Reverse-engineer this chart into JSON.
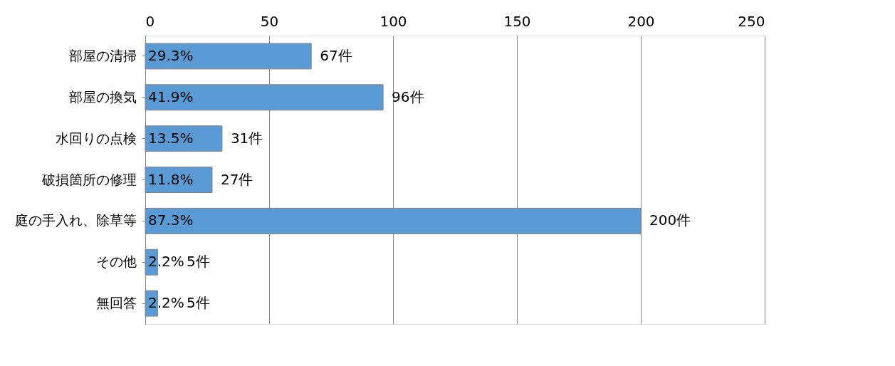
{
  "chart_data": {
    "type": "bar",
    "orientation": "horizontal",
    "categories": [
      "部屋の清掃",
      "部屋の換気",
      "水回りの点検",
      "破損箇所の修理",
      "庭の手入れ、除草等",
      "その他",
      "無回答"
    ],
    "values": [
      67,
      96,
      31,
      27,
      200,
      5,
      5
    ],
    "value_labels": [
      "67件",
      "96件",
      "31件",
      "27件",
      "200件",
      "5件",
      "5件"
    ],
    "color": "#5b9bd5",
    "xlim": [
      0,
      250
    ],
    "xticks": [
      0,
      50,
      100,
      150,
      200,
      250
    ],
    "grid": "x",
    "legend": false,
    "annotations": [
      "29.3%",
      "41.9%",
      "13.5%",
      "11.8%",
      "87.3%",
      "2.2%",
      "2.2%"
    ]
  }
}
